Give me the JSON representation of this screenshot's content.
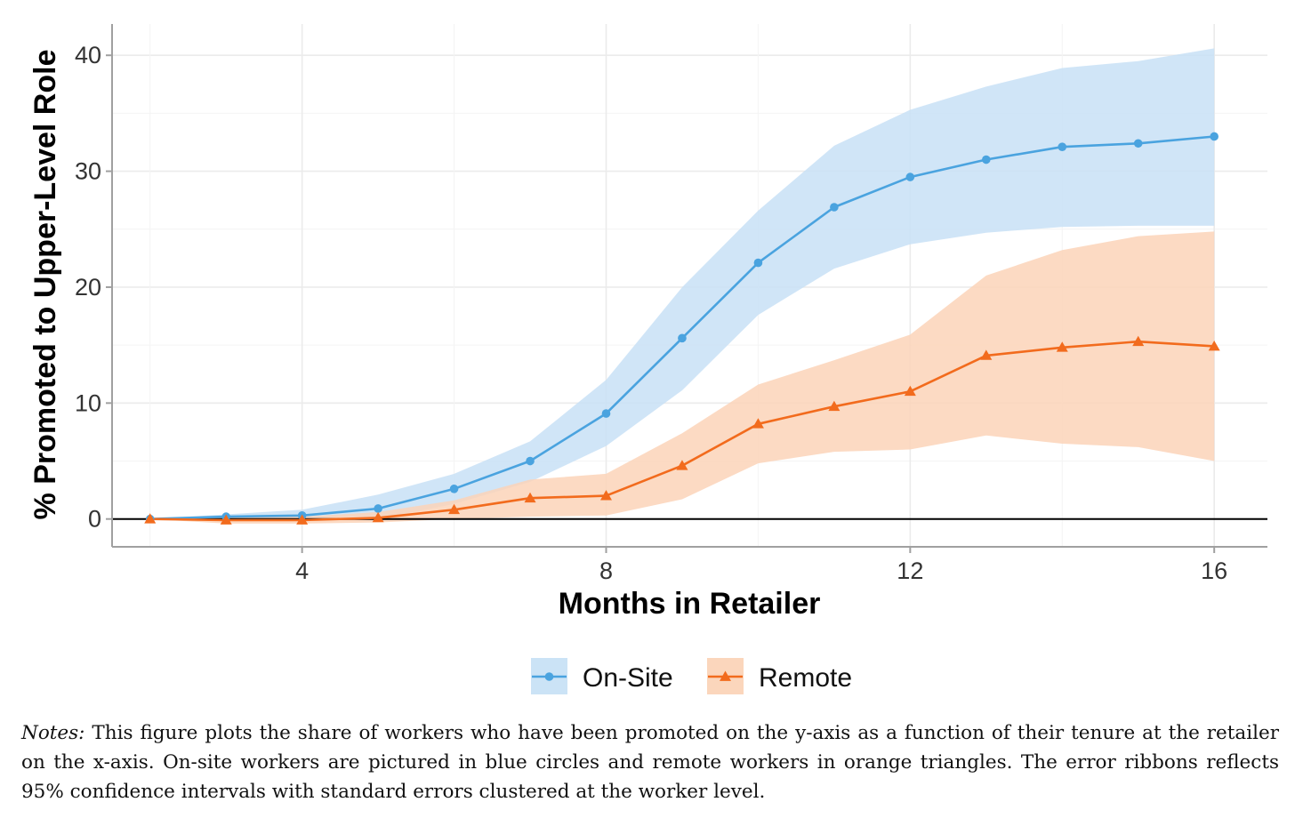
{
  "chart_data": {
    "type": "line",
    "xlabel": "Months in Retailer",
    "ylabel": "% Promoted to Upper-Level Role",
    "xlim": [
      1.5,
      16.7
    ],
    "ylim": [
      -2.4,
      42.7
    ],
    "xticks": [
      4,
      8,
      12,
      16
    ],
    "yticks": [
      0,
      10,
      20,
      30,
      40
    ],
    "grid": true,
    "zero_line": true,
    "legend_position": "bottom",
    "x": [
      2,
      3,
      4,
      5,
      6,
      7,
      8,
      9,
      10,
      11,
      12,
      13,
      14,
      15,
      16
    ],
    "series": [
      {
        "name": "On-Site",
        "marker": "circle",
        "color": "#4aa3df",
        "ribbon_color": "#c8e1f6",
        "values": [
          0,
          0.2,
          0.3,
          0.9,
          2.6,
          5.0,
          9.1,
          15.6,
          22.1,
          26.9,
          29.5,
          31.0,
          32.1,
          32.4,
          33.0
        ],
        "lower": [
          0,
          0,
          0,
          0,
          1.3,
          3.2,
          6.3,
          11.1,
          17.6,
          21.6,
          23.7,
          24.7,
          25.2,
          25.3,
          25.3
        ],
        "upper": [
          0,
          0.4,
          0.8,
          2.1,
          3.9,
          6.7,
          12.0,
          20.0,
          26.6,
          32.2,
          35.3,
          37.3,
          38.9,
          39.5,
          40.6
        ]
      },
      {
        "name": "Remote",
        "marker": "triangle",
        "color": "#f26b1d",
        "ribbon_color": "#fbd4b8",
        "values": [
          0,
          -0.1,
          -0.1,
          0.1,
          0.8,
          1.8,
          2.0,
          4.6,
          8.2,
          9.7,
          11.0,
          14.1,
          14.8,
          15.3,
          14.9
        ],
        "lower": [
          0,
          -0.4,
          -0.4,
          -0.3,
          0,
          0.2,
          0.3,
          1.7,
          4.8,
          5.8,
          6.0,
          7.2,
          6.5,
          6.2,
          5.0
        ],
        "upper": [
          0,
          0.2,
          0.2,
          0.6,
          1.6,
          3.4,
          3.9,
          7.4,
          11.6,
          13.7,
          15.9,
          21.0,
          23.2,
          24.4,
          24.8
        ]
      }
    ]
  },
  "notes": {
    "label": "Notes:",
    "text": " This figure plots the share of workers who have been promoted on the y-axis as a function of their tenure at the retailer on the x-axis. On-site workers are pictured in blue circles and remote workers in orange triangles. The error ribbons reflects 95% confidence intervals with standard errors clustered at the worker level."
  }
}
